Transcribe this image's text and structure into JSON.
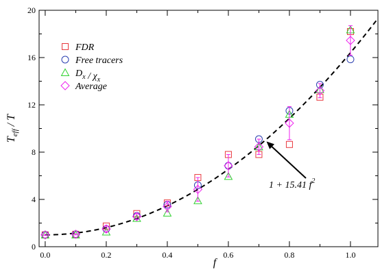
{
  "chart_data": {
    "type": "scatter",
    "xlabel": "f",
    "ylabel": {
      "main": "T",
      "sub": "eff",
      "tail": " / T"
    },
    "xlim": [
      -0.02,
      1.09
    ],
    "ylim": [
      0,
      20
    ],
    "xticks": [
      "0.0",
      "0.2",
      "0.4",
      "0.6",
      "0.8",
      "1.0"
    ],
    "yticks": [
      "0",
      "4",
      "8",
      "12",
      "16",
      "20"
    ],
    "grid": false,
    "legend_position": "top-left",
    "legend": [
      {
        "label": "FDR",
        "marker": "square",
        "color": "#e8383d"
      },
      {
        "label": "Free tracers",
        "marker": "circle",
        "color": "#2a3fb0"
      },
      {
        "label": "D_x / χ_x",
        "marker": "triangle",
        "color": "#2fd12f"
      },
      {
        "label": "Average",
        "marker": "diamond",
        "color": "#ee22ee"
      }
    ],
    "series": [
      {
        "name": "FDR",
        "marker": "square",
        "color": "#e8383d",
        "x": [
          0.0,
          0.1,
          0.2,
          0.3,
          0.4,
          0.5,
          0.6,
          0.7,
          0.8,
          0.9,
          1.0
        ],
        "y": [
          1.0,
          1.05,
          1.75,
          2.8,
          3.7,
          5.85,
          7.8,
          7.8,
          8.65,
          12.65,
          18.2
        ]
      },
      {
        "name": "Free tracers",
        "marker": "circle",
        "color": "#2a3fb0",
        "x": [
          0.0,
          0.1,
          0.2,
          0.3,
          0.4,
          0.5,
          0.6,
          0.7,
          0.8,
          0.9,
          1.0
        ],
        "y": [
          1.0,
          1.05,
          1.5,
          2.6,
          3.55,
          5.2,
          6.85,
          9.1,
          11.5,
          13.7,
          15.85
        ]
      },
      {
        "name": "D_x / χ_x",
        "marker": "triangle",
        "color": "#2fd12f",
        "x": [
          0.0,
          0.1,
          0.2,
          0.3,
          0.4,
          0.5,
          0.6,
          0.7,
          0.8,
          0.9,
          1.0
        ],
        "y": [
          1.0,
          1.0,
          1.25,
          2.4,
          2.85,
          3.9,
          5.95,
          8.45,
          11.2,
          13.3,
          18.35
        ]
      },
      {
        "name": "Average",
        "marker": "diamond",
        "color": "#ee22ee",
        "x": [
          0.0,
          0.1,
          0.2,
          0.3,
          0.4,
          0.5,
          0.6,
          0.7,
          0.8,
          0.9,
          1.0
        ],
        "y": [
          1.0,
          1.05,
          1.5,
          2.55,
          3.4,
          4.85,
          6.85,
          8.45,
          10.45,
          13.2,
          17.45
        ],
        "yerr": [
          0.05,
          0.05,
          0.25,
          0.25,
          0.45,
          1.0,
          0.95,
          0.65,
          1.4,
          0.6,
          1.25
        ]
      }
    ],
    "fit": {
      "type": "dashed-line",
      "a": 1,
      "b": 15.41,
      "color": "#000000"
    },
    "annotation": {
      "prefix": "1 + 15.41 ",
      "var": "f",
      "sup": "2",
      "arrow_to": {
        "x": 0.725,
        "y": 8.9
      }
    }
  }
}
